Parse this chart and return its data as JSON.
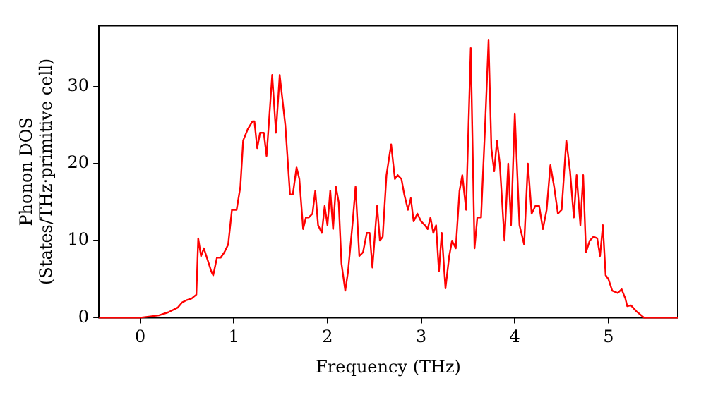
{
  "chart_data": {
    "type": "line",
    "xlabel": "Frequency (THz)",
    "ylabel": "Phonon DOS\n(States/THz·primitive cell)",
    "xlim": [
      -0.44,
      5.74
    ],
    "ylim": [
      0,
      37.9
    ],
    "xticks": [
      0,
      1,
      2,
      3,
      4,
      5
    ],
    "yticks": [
      0,
      10,
      20,
      30
    ],
    "grid": false,
    "legend": false,
    "marker": "none",
    "line_style": "solid",
    "series": [
      {
        "color": "#ff0000",
        "x": [
          -0.44,
          0,
          0.2,
          0.3,
          0.4,
          0.45,
          0.5,
          0.55,
          0.6,
          0.62,
          0.65,
          0.68,
          0.72,
          0.76,
          0.78,
          0.82,
          0.86,
          0.9,
          0.94,
          0.98,
          1.03,
          1.07,
          1.1,
          1.15,
          1.2,
          1.22,
          1.25,
          1.28,
          1.32,
          1.35,
          1.41,
          1.45,
          1.49,
          1.55,
          1.6,
          1.63,
          1.67,
          1.7,
          1.74,
          1.77,
          1.8,
          1.84,
          1.87,
          1.9,
          1.94,
          1.97,
          2.0,
          2.03,
          2.06,
          2.09,
          2.12,
          2.15,
          2.19,
          2.22,
          2.27,
          2.3,
          2.34,
          2.38,
          2.42,
          2.45,
          2.48,
          2.53,
          2.56,
          2.59,
          2.63,
          2.68,
          2.72,
          2.75,
          2.79,
          2.82,
          2.86,
          2.89,
          2.92,
          2.96,
          3.0,
          3.04,
          3.07,
          3.1,
          3.13,
          3.16,
          3.19,
          3.22,
          3.26,
          3.3,
          3.33,
          3.37,
          3.41,
          3.44,
          3.48,
          3.53,
          3.57,
          3.6,
          3.64,
          3.68,
          3.72,
          3.75,
          3.78,
          3.81,
          3.84,
          3.89,
          3.93,
          3.96,
          4.0,
          4.05,
          4.1,
          4.14,
          4.18,
          4.22,
          4.26,
          4.3,
          4.34,
          4.38,
          4.42,
          4.46,
          4.5,
          4.55,
          4.59,
          4.63,
          4.66,
          4.7,
          4.73,
          4.76,
          4.8,
          4.84,
          4.88,
          4.91,
          4.94,
          4.97,
          5.0,
          5.04,
          5.1,
          5.14,
          5.18,
          5.2,
          5.24,
          5.3,
          5.38,
          5.74
        ],
        "values": [
          0,
          0,
          0.3,
          0.7,
          1.3,
          2,
          2.3,
          2.5,
          3,
          10.3,
          8,
          9,
          7.5,
          6,
          5.5,
          7.8,
          7.8,
          8.5,
          9.5,
          14,
          14,
          17,
          23,
          24.5,
          25.5,
          25.5,
          22,
          24,
          24,
          21,
          31.5,
          24,
          31.5,
          25,
          16,
          16,
          19.5,
          18,
          11.5,
          13,
          13,
          13.5,
          16.5,
          12,
          11,
          14.5,
          12,
          16.5,
          11.5,
          17,
          15,
          7,
          3.5,
          6,
          12.5,
          17,
          8,
          8.5,
          11,
          11,
          6.5,
          14.5,
          10,
          10.5,
          18.5,
          22.5,
          18,
          18.5,
          18,
          16,
          14,
          15.5,
          12.5,
          13.5,
          12.5,
          12,
          11.5,
          13,
          11,
          12,
          6,
          11,
          3.8,
          8,
          10,
          9,
          16.5,
          18.5,
          14,
          35,
          9,
          13,
          13,
          24,
          36,
          22,
          19,
          23,
          20,
          10,
          20,
          12,
          26.5,
          12,
          9.5,
          20,
          13.5,
          14.5,
          14.5,
          11.5,
          14,
          19.8,
          17,
          13.5,
          14,
          23,
          19,
          13,
          18.5,
          12,
          18.5,
          8.5,
          10,
          10.5,
          10.3,
          8,
          12,
          5.5,
          5,
          3.5,
          3.2,
          3.7,
          2.5,
          1.5,
          1.6,
          0.8,
          0,
          0
        ]
      }
    ]
  }
}
